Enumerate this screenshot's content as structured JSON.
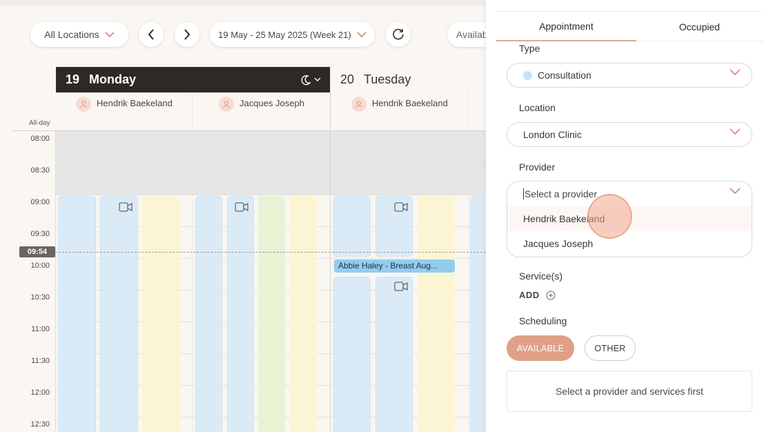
{
  "toolbar": {
    "location_filter": "All Locations",
    "date_range": "19 May - 25 May 2025 (Week 21)",
    "availability_label": "Availab"
  },
  "calendar": {
    "allday_label": "All-day",
    "now_time": "09:54",
    "days": [
      {
        "number": "19",
        "name": "Monday",
        "providers": [
          "Hendrik Baekeland",
          "Jacques Joseph"
        ]
      },
      {
        "number": "20",
        "name": "Tuesday",
        "providers": [
          "Hendrik Baekeland"
        ]
      }
    ],
    "times": [
      "08:00",
      "08:30",
      "09:00",
      "09:30",
      "10:00",
      "10:30",
      "11:00",
      "11:30",
      "12:00",
      "12:30"
    ],
    "event": "Abbie Haley - Breast Aug..."
  },
  "panel": {
    "tabs": [
      "Appointment",
      "Occupied"
    ],
    "type": {
      "label": "Type",
      "value": "Consultation"
    },
    "location": {
      "label": "Location",
      "value": "London Clinic"
    },
    "provider": {
      "label": "Provider",
      "placeholder": "Select a provider",
      "options": [
        "Hendrik Baekeland",
        "Jacques Joseph"
      ]
    },
    "services": {
      "label": "Service(s)",
      "add": "ADD"
    },
    "scheduling": {
      "label": "Scheduling",
      "available": "AVAILABLE",
      "other": "OTHER"
    },
    "info": "Select a provider and services first"
  },
  "colors": {
    "accent": "#dfa087",
    "header_dark": "#2d2927",
    "slot_blue": "#daebf7",
    "slot_yellow": "#fbf5d4",
    "slot_green": "#e8f2d4",
    "event": "#92cdf0"
  }
}
